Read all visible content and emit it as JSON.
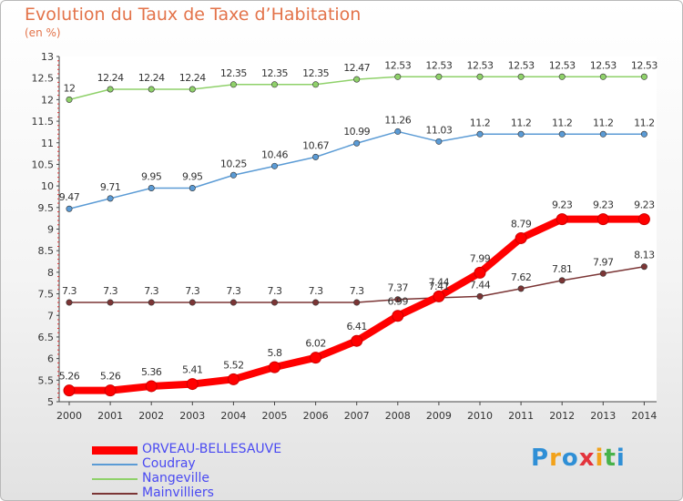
{
  "chart_data": {
    "type": "line",
    "title": "Evolution du Taux de Taxe d’Habitation",
    "subtitle": "(en %)",
    "x": [
      "2000",
      "2001",
      "2002",
      "2003",
      "2004",
      "2005",
      "2006",
      "2007",
      "2008",
      "2009",
      "2010",
      "2011",
      "2012",
      "2013",
      "2014"
    ],
    "ylim": [
      5,
      13
    ],
    "yticks": [
      "5",
      "5.5",
      "6",
      "6.5",
      "7",
      "7.5",
      "8",
      "8.5",
      "9",
      "9.5",
      "10",
      "10.5",
      "11",
      "11.5",
      "12",
      "12.5",
      "13"
    ],
    "grid": false,
    "legend_position": "bottom-left",
    "series": [
      {
        "name": "ORVEAU-BELLESAUVE",
        "color": "#ff0000",
        "values": [
          5.26,
          5.26,
          5.36,
          5.41,
          5.52,
          5.8,
          6.02,
          6.41,
          6.99,
          7.44,
          7.99,
          8.79,
          9.23,
          9.23,
          9.23
        ],
        "labels": [
          "5.26",
          "5.26",
          "5.36",
          "5.41",
          "5.52",
          "5.8",
          "6.02",
          "6.41",
          "6.99",
          "7.44",
          "7.99",
          "8.79",
          "9.23",
          "9.23",
          "9.23"
        ]
      },
      {
        "name": "Coudray",
        "color": "#5b9bd5",
        "values": [
          9.47,
          9.71,
          9.95,
          9.95,
          10.25,
          10.46,
          10.67,
          10.99,
          11.26,
          11.03,
          11.2,
          11.2,
          11.2,
          11.2,
          11.2
        ],
        "labels": [
          "9.47",
          "9.71",
          "9.95",
          "9.95",
          "10.25",
          "10.46",
          "10.67",
          "10.99",
          "11.26",
          "11.03",
          "11.2",
          "11.2",
          "11.2",
          "11.2",
          "11.2"
        ]
      },
      {
        "name": "Nangeville",
        "color": "#8fd16a",
        "values": [
          12,
          12.24,
          12.24,
          12.24,
          12.35,
          12.35,
          12.35,
          12.47,
          12.53,
          12.53,
          12.53,
          12.53,
          12.53,
          12.53,
          12.53
        ],
        "labels": [
          "12",
          "12.24",
          "12.24",
          "12.24",
          "12.35",
          "12.35",
          "12.35",
          "12.47",
          "12.53",
          "12.53",
          "12.53",
          "12.53",
          "12.53",
          "12.53",
          "12.53"
        ]
      },
      {
        "name": "Mainvilliers",
        "color": "#7b3535",
        "values": [
          7.3,
          7.3,
          7.3,
          7.3,
          7.3,
          7.3,
          7.3,
          7.3,
          7.37,
          7.41,
          7.44,
          7.62,
          7.81,
          7.97,
          8.13
        ],
        "labels": [
          "7.3",
          "7.3",
          "7.3",
          "7.3",
          "7.3",
          "7.3",
          "7.3",
          "7.3",
          "7.37",
          "7.41",
          "7.44",
          "7.62",
          "7.81",
          "7.97",
          "8.13"
        ]
      }
    ]
  },
  "logo": {
    "text": "Proxiti",
    "letters": [
      {
        "ch": "P",
        "color": "#2f8fd6"
      },
      {
        "ch": "r",
        "color": "#f2a21b"
      },
      {
        "ch": "o",
        "color": "#2f8fd6"
      },
      {
        "ch": "x",
        "color": "#e3343c"
      },
      {
        "ch": "i",
        "color": "#f2a21b"
      },
      {
        "ch": "t",
        "color": "#48b24a"
      },
      {
        "ch": "i",
        "color": "#2f8fd6"
      }
    ]
  }
}
